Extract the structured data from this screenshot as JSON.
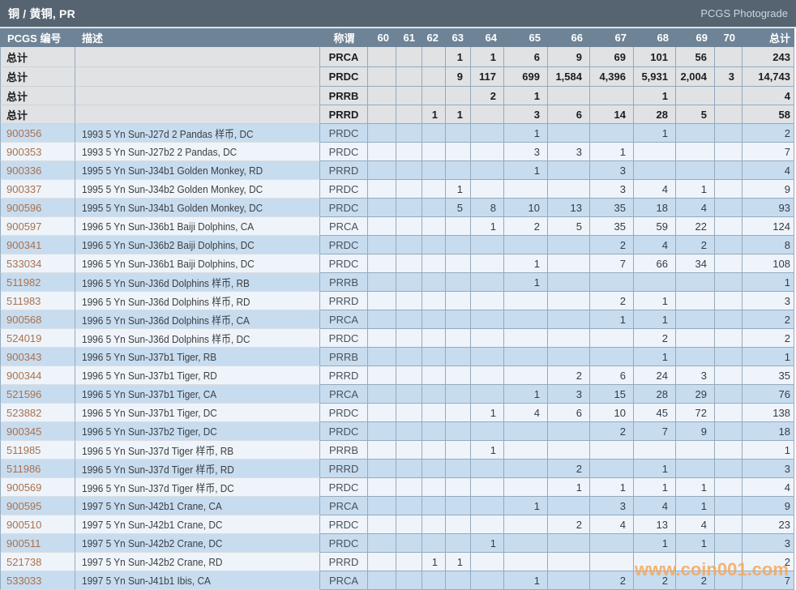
{
  "page": {
    "title": "铜 / 黄铜, PR",
    "brand": "PCGS Photograde"
  },
  "watermark": {
    "text": "www.coin001.com",
    "color": "#F3A75A"
  },
  "table": {
    "columns": {
      "pcgs_no": "PCGS 编号",
      "description": "描述",
      "designation": "称谓",
      "grades": [
        "60",
        "61",
        "62",
        "63",
        "64",
        "65",
        "66",
        "67",
        "68",
        "69",
        "70"
      ],
      "total": "总计"
    },
    "summary_label": "总计",
    "summary_rows": [
      {
        "designation": "PRCA",
        "grades": [
          "",
          "",
          "",
          "1",
          "1",
          "6",
          "9",
          "69",
          "101",
          "56",
          ""
        ],
        "total": "243"
      },
      {
        "designation": "PRDC",
        "grades": [
          "",
          "",
          "",
          "9",
          "117",
          "699",
          "1,584",
          "4,396",
          "5,931",
          "2,004",
          "3"
        ],
        "total": "14,743"
      },
      {
        "designation": "PRRB",
        "grades": [
          "",
          "",
          "",
          "",
          "2",
          "1",
          "",
          "",
          "1",
          "",
          ""
        ],
        "total": "4"
      },
      {
        "designation": "PRRD",
        "grades": [
          "",
          "",
          "1",
          "1",
          "",
          "3",
          "6",
          "14",
          "28",
          "5",
          ""
        ],
        "total": "58"
      }
    ],
    "rows": [
      {
        "pcgs_no": "900356",
        "description": "1993 5 Yn Sun-J27d 2 Pandas 样币, DC",
        "designation": "PRDC",
        "grades": [
          "",
          "",
          "",
          "",
          "",
          "1",
          "",
          "",
          "1",
          "",
          ""
        ],
        "total": "2"
      },
      {
        "pcgs_no": "900353",
        "description": "1993 5 Yn Sun-J27b2 2 Pandas, DC",
        "designation": "PRDC",
        "grades": [
          "",
          "",
          "",
          "",
          "",
          "3",
          "3",
          "1",
          "",
          "",
          ""
        ],
        "total": "7"
      },
      {
        "pcgs_no": "900336",
        "description": "1995 5 Yn Sun-J34b1 Golden Monkey, RD",
        "designation": "PRRD",
        "grades": [
          "",
          "",
          "",
          "",
          "",
          "1",
          "",
          "3",
          "",
          "",
          ""
        ],
        "total": "4"
      },
      {
        "pcgs_no": "900337",
        "description": "1995 5 Yn Sun-J34b2 Golden Monkey, DC",
        "designation": "PRDC",
        "grades": [
          "",
          "",
          "",
          "1",
          "",
          "",
          "",
          "3",
          "4",
          "1",
          ""
        ],
        "total": "9"
      },
      {
        "pcgs_no": "900596",
        "description": "1995 5 Yn Sun-J34b1 Golden Monkey, DC",
        "designation": "PRDC",
        "grades": [
          "",
          "",
          "",
          "5",
          "8",
          "10",
          "13",
          "35",
          "18",
          "4",
          ""
        ],
        "total": "93"
      },
      {
        "pcgs_no": "900597",
        "description": "1996 5 Yn Sun-J36b1 Baiji Dolphins, CA",
        "designation": "PRCA",
        "grades": [
          "",
          "",
          "",
          "",
          "1",
          "2",
          "5",
          "35",
          "59",
          "22",
          ""
        ],
        "total": "124"
      },
      {
        "pcgs_no": "900341",
        "description": "1996 5 Yn Sun-J36b2 Baiji Dolphins, DC",
        "designation": "PRDC",
        "grades": [
          "",
          "",
          "",
          "",
          "",
          "",
          "",
          "2",
          "4",
          "2",
          ""
        ],
        "total": "8"
      },
      {
        "pcgs_no": "533034",
        "description": "1996 5 Yn Sun-J36b1 Baiji Dolphins, DC",
        "designation": "PRDC",
        "grades": [
          "",
          "",
          "",
          "",
          "",
          "1",
          "",
          "7",
          "66",
          "34",
          ""
        ],
        "total": "108"
      },
      {
        "pcgs_no": "511982",
        "description": "1996 5 Yn Sun-J36d Dolphins 样币, RB",
        "designation": "PRRB",
        "grades": [
          "",
          "",
          "",
          "",
          "",
          "1",
          "",
          "",
          "",
          "",
          ""
        ],
        "total": "1"
      },
      {
        "pcgs_no": "511983",
        "description": "1996 5 Yn Sun-J36d Dolphins 样币, RD",
        "designation": "PRRD",
        "grades": [
          "",
          "",
          "",
          "",
          "",
          "",
          "",
          "2",
          "1",
          "",
          ""
        ],
        "total": "3"
      },
      {
        "pcgs_no": "900568",
        "description": "1996 5 Yn Sun-J36d Dolphins 样币, CA",
        "designation": "PRCA",
        "grades": [
          "",
          "",
          "",
          "",
          "",
          "",
          "",
          "1",
          "1",
          "",
          ""
        ],
        "total": "2"
      },
      {
        "pcgs_no": "524019",
        "description": "1996 5 Yn Sun-J36d Dolphins 样币, DC",
        "designation": "PRDC",
        "grades": [
          "",
          "",
          "",
          "",
          "",
          "",
          "",
          "",
          "2",
          "",
          ""
        ],
        "total": "2"
      },
      {
        "pcgs_no": "900343",
        "description": "1996 5 Yn Sun-J37b1 Tiger, RB",
        "designation": "PRRB",
        "grades": [
          "",
          "",
          "",
          "",
          "",
          "",
          "",
          "",
          "1",
          "",
          ""
        ],
        "total": "1"
      },
      {
        "pcgs_no": "900344",
        "description": "1996 5 Yn Sun-J37b1 Tiger, RD",
        "designation": "PRRD",
        "grades": [
          "",
          "",
          "",
          "",
          "",
          "",
          "2",
          "6",
          "24",
          "3",
          ""
        ],
        "total": "35"
      },
      {
        "pcgs_no": "521596",
        "description": "1996 5 Yn Sun-J37b1 Tiger, CA",
        "designation": "PRCA",
        "grades": [
          "",
          "",
          "",
          "",
          "",
          "1",
          "3",
          "15",
          "28",
          "29",
          ""
        ],
        "total": "76"
      },
      {
        "pcgs_no": "523882",
        "description": "1996 5 Yn Sun-J37b1 Tiger, DC",
        "designation": "PRDC",
        "grades": [
          "",
          "",
          "",
          "",
          "1",
          "4",
          "6",
          "10",
          "45",
          "72",
          ""
        ],
        "total": "138"
      },
      {
        "pcgs_no": "900345",
        "description": "1996 5 Yn Sun-J37b2 Tiger, DC",
        "designation": "PRDC",
        "grades": [
          "",
          "",
          "",
          "",
          "",
          "",
          "",
          "2",
          "7",
          "9",
          ""
        ],
        "total": "18"
      },
      {
        "pcgs_no": "511985",
        "description": "1996 5 Yn Sun-J37d Tiger 样币, RB",
        "designation": "PRRB",
        "grades": [
          "",
          "",
          "",
          "",
          "1",
          "",
          "",
          "",
          "",
          "",
          ""
        ],
        "total": "1"
      },
      {
        "pcgs_no": "511986",
        "description": "1996 5 Yn Sun-J37d Tiger 样币, RD",
        "designation": "PRRD",
        "grades": [
          "",
          "",
          "",
          "",
          "",
          "",
          "2",
          "",
          "1",
          "",
          ""
        ],
        "total": "3"
      },
      {
        "pcgs_no": "900569",
        "description": "1996 5 Yn Sun-J37d Tiger 样币, DC",
        "designation": "PRDC",
        "grades": [
          "",
          "",
          "",
          "",
          "",
          "",
          "1",
          "1",
          "1",
          "1",
          ""
        ],
        "total": "4"
      },
      {
        "pcgs_no": "900595",
        "description": "1997 5 Yn Sun-J42b1 Crane, CA",
        "designation": "PRCA",
        "grades": [
          "",
          "",
          "",
          "",
          "",
          "1",
          "",
          "3",
          "4",
          "1",
          ""
        ],
        "total": "9"
      },
      {
        "pcgs_no": "900510",
        "description": "1997 5 Yn Sun-J42b1 Crane, DC",
        "designation": "PRDC",
        "grades": [
          "",
          "",
          "",
          "",
          "",
          "",
          "2",
          "4",
          "13",
          "4",
          ""
        ],
        "total": "23"
      },
      {
        "pcgs_no": "900511",
        "description": "1997 5 Yn Sun-J42b2 Crane, DC",
        "designation": "PRDC",
        "grades": [
          "",
          "",
          "",
          "",
          "1",
          "",
          "",
          "",
          "1",
          "1",
          ""
        ],
        "total": "3"
      },
      {
        "pcgs_no": "521738",
        "description": "1997 5 Yn Sun-J42b2 Crane, RD",
        "designation": "PRRD",
        "grades": [
          "",
          "",
          "1",
          "1",
          "",
          "",
          "",
          "",
          "",
          "",
          ""
        ],
        "total": "2"
      },
      {
        "pcgs_no": "533033",
        "description": "1997 5 Yn Sun-J41b1 Ibis, CA",
        "designation": "PRCA",
        "grades": [
          "",
          "",
          "",
          "",
          "",
          "1",
          "",
          "2",
          "2",
          "2",
          ""
        ],
        "total": "7"
      }
    ]
  }
}
